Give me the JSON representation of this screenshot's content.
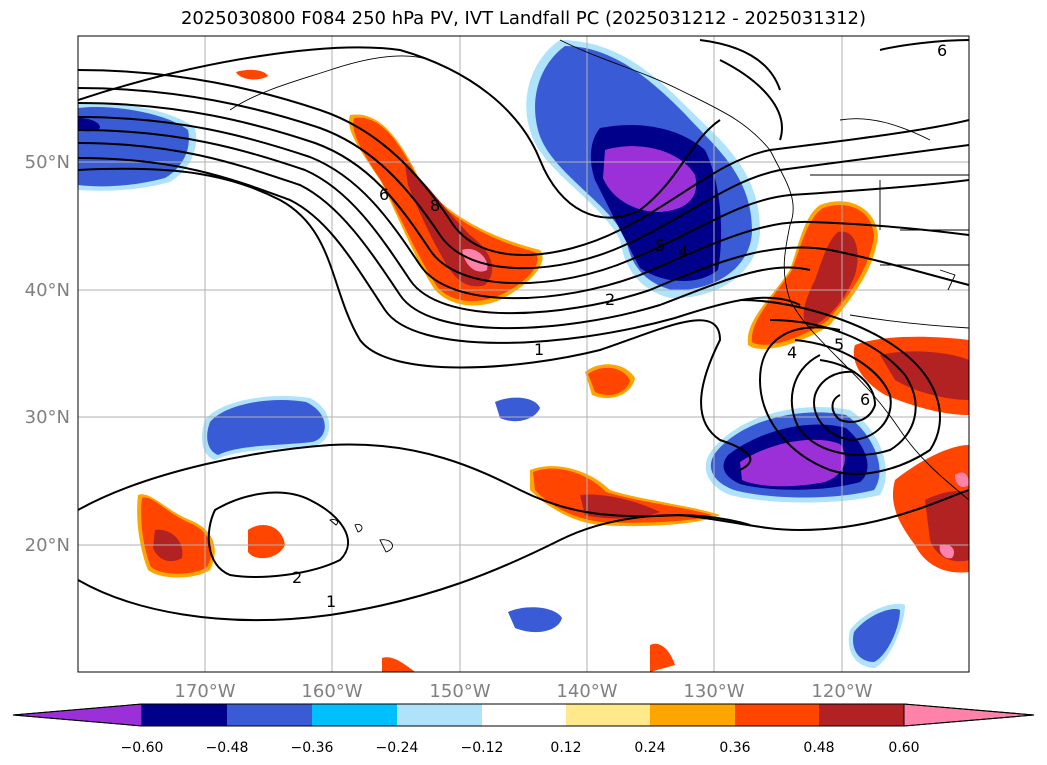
{
  "title": "2025030800 F084 250 hPa PV, IVT Landfall PC (2025031212 - 2025031312)",
  "map": {
    "lat_labels": [
      "50°N",
      "40°N",
      "30°N",
      "20°N"
    ],
    "lon_labels": [
      "170°W",
      "160°W",
      "150°W",
      "140°W",
      "130°W",
      "120°W"
    ],
    "contour_labels": [
      "6",
      "8",
      "5",
      "4",
      "2",
      "1",
      "4",
      "5",
      "6",
      "2",
      "1",
      "6"
    ]
  },
  "colorbar": {
    "ticks": [
      "−0.60",
      "−0.48",
      "−0.36",
      "−0.24",
      "−0.12",
      "0.12",
      "0.24",
      "0.36",
      "0.48",
      "0.60"
    ],
    "colors": [
      "#9b30d9",
      "#00008b",
      "#3a5bd6",
      "#00bfff",
      "#aee3fb",
      "#ffffff",
      "#ffe98a",
      "#ffa500",
      "#ff4500",
      "#b22222",
      "#ff82ab"
    ]
  }
}
